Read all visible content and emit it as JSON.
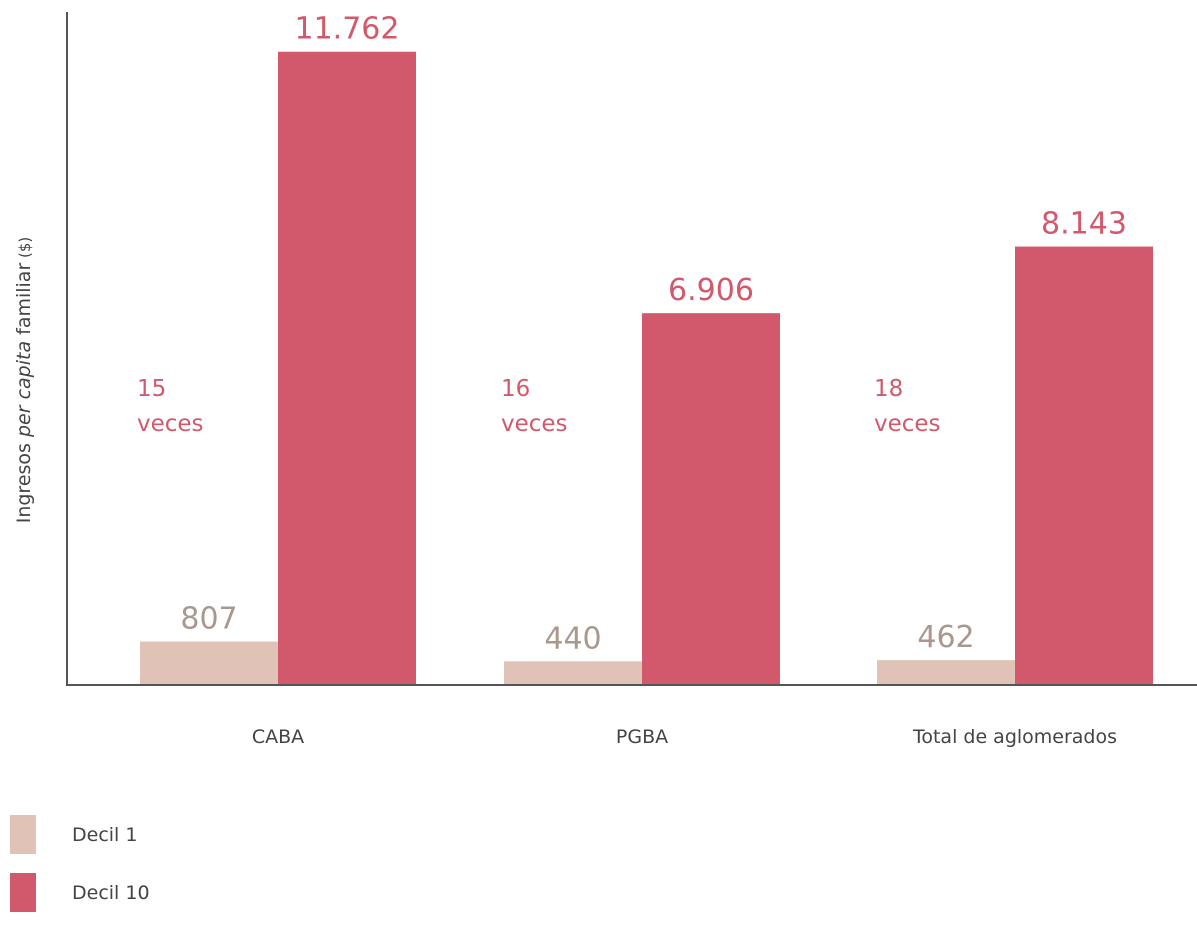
{
  "colors": {
    "decil1": "#e0c3b6",
    "decil10": "#d2596b",
    "decil1_label": "#a9988e",
    "axis": "#555555",
    "text": "#444444"
  },
  "chart_data": {
    "type": "bar",
    "categories": [
      "CABA",
      "PGBA",
      "Total de aglomerados"
    ],
    "series": [
      {
        "name": "Decil 1",
        "values": [
          807,
          440,
          462
        ],
        "labels": [
          "807",
          "440",
          "462"
        ]
      },
      {
        "name": "Decil 10",
        "values": [
          11762,
          6906,
          8143
        ],
        "labels": [
          "11.762",
          "6.906",
          "8.143"
        ]
      }
    ],
    "ratio_annotations": [
      {
        "number": "15",
        "word": "veces"
      },
      {
        "number": "16",
        "word": "veces"
      },
      {
        "number": "18",
        "word": "veces"
      }
    ],
    "ylabel": {
      "prefix": "Ingresos ",
      "italic": "per capita",
      "suffix": " familiar",
      "unit": " ($)"
    },
    "ylim": [
      0,
      12500
    ],
    "grid": false,
    "legend_position": "bottom-left"
  },
  "legend": [
    {
      "label": "Decil 1"
    },
    {
      "label": "Decil 10"
    }
  ]
}
